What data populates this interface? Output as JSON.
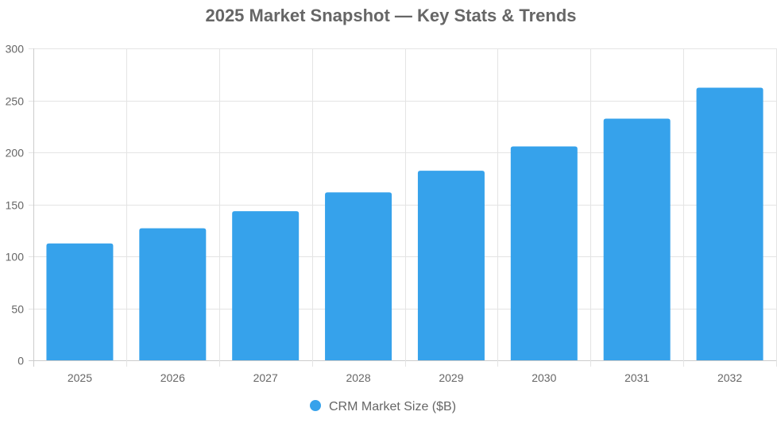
{
  "chart_data": {
    "type": "bar",
    "title": "2025 Market Snapshot — Key Stats & Trends",
    "categories": [
      "2025",
      "2026",
      "2027",
      "2028",
      "2029",
      "2030",
      "2031",
      "2032"
    ],
    "series": [
      {
        "name": "CRM Market Size ($B)",
        "color": "#36a2eb",
        "values": [
          112.4,
          127.0,
          143.4,
          161.5,
          182.3,
          205.7,
          232.4,
          262.2
        ]
      }
    ],
    "xlabel": "",
    "ylabel": "",
    "ylim": [
      0,
      300
    ],
    "yticks": [
      0,
      50,
      100,
      150,
      200,
      250,
      300
    ],
    "grid": true,
    "legend": "bottom"
  }
}
